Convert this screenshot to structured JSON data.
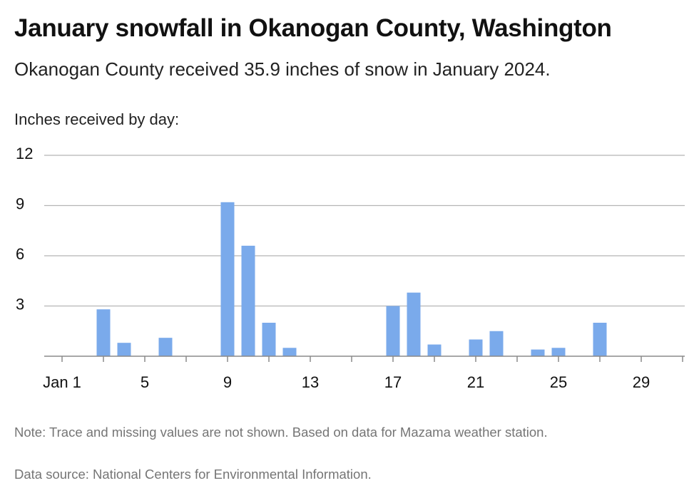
{
  "header": {
    "title": "January snowfall in Okanogan County, Washington",
    "subtitle": "Okanogan County received 35.9 inches of snow in January 2024.",
    "y_caption": "Inches received by day:"
  },
  "footer": {
    "note": "Note: Trace and missing values are not shown. Based on data for Mazama weather station.",
    "source": "Data source: National Centers for Environmental Information."
  },
  "chart_data": {
    "type": "bar",
    "title": "January snowfall in Okanogan County, Washington",
    "ylabel": "Inches received by day:",
    "xlabel": "",
    "x_range": [
      1,
      31
    ],
    "ylim": [
      0,
      12
    ],
    "yticks": [
      3,
      6,
      9,
      12
    ],
    "xticks": [
      {
        "day": 1,
        "label": "Jan 1"
      },
      {
        "day": 5,
        "label": "5"
      },
      {
        "day": 9,
        "label": "9"
      },
      {
        "day": 13,
        "label": "13"
      },
      {
        "day": 17,
        "label": "17"
      },
      {
        "day": 21,
        "label": "21"
      },
      {
        "day": 25,
        "label": "25"
      },
      {
        "day": 29,
        "label": "29"
      }
    ],
    "grid": true,
    "bar_color": "#7aaaeb",
    "points": [
      {
        "day": 3,
        "value": 2.8
      },
      {
        "day": 4,
        "value": 0.8
      },
      {
        "day": 6,
        "value": 1.1
      },
      {
        "day": 9,
        "value": 9.2
      },
      {
        "day": 10,
        "value": 6.6
      },
      {
        "day": 11,
        "value": 2.0
      },
      {
        "day": 12,
        "value": 0.5
      },
      {
        "day": 17,
        "value": 3.0
      },
      {
        "day": 18,
        "value": 3.8
      },
      {
        "day": 19,
        "value": 0.7
      },
      {
        "day": 21,
        "value": 1.0
      },
      {
        "day": 22,
        "value": 1.5
      },
      {
        "day": 24,
        "value": 0.4
      },
      {
        "day": 25,
        "value": 0.5
      },
      {
        "day": 27,
        "value": 2.0
      }
    ]
  }
}
